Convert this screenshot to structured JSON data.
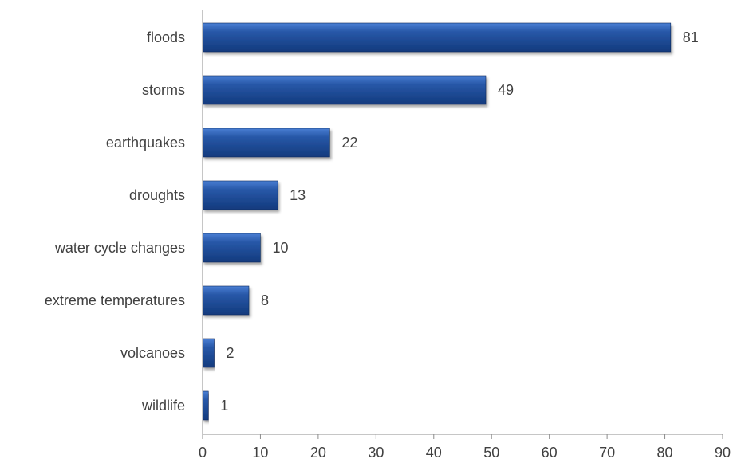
{
  "chart_data": {
    "type": "bar",
    "orientation": "horizontal",
    "title": "",
    "xlabel": "",
    "ylabel": "",
    "categories": [
      "floods",
      "storms",
      "earthquakes",
      "droughts",
      "water cycle changes",
      "extreme temperatures",
      "volcanoes",
      "wildlife"
    ],
    "values": [
      81,
      49,
      22,
      13,
      10,
      8,
      2,
      1
    ],
    "xlim": [
      0,
      90
    ],
    "xticks": [
      0,
      10,
      20,
      30,
      40,
      50,
      60,
      70,
      80,
      90
    ],
    "grid": false,
    "legend": "none",
    "bar_color": "#1f4e9c",
    "bar_highlight": "#3f74c9",
    "bar_shadow": "#0d2a5c"
  }
}
